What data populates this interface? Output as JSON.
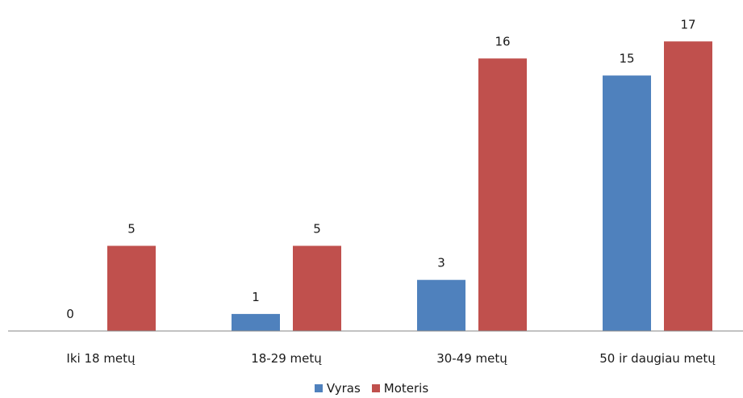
{
  "chart_data": {
    "type": "bar",
    "categories": [
      "Iki 18 metų",
      "18-29 metų",
      "30-49 metų",
      "50 ir daugiau metų"
    ],
    "series": [
      {
        "name": "Vyras",
        "values": [
          0,
          1,
          3,
          15
        ],
        "color": "#4f81bd"
      },
      {
        "name": "Moteris",
        "values": [
          5,
          5,
          16,
          17
        ],
        "color": "#c0504d"
      }
    ],
    "ylim": [
      0,
      19
    ],
    "grid": false,
    "legend_position": "bottom"
  }
}
